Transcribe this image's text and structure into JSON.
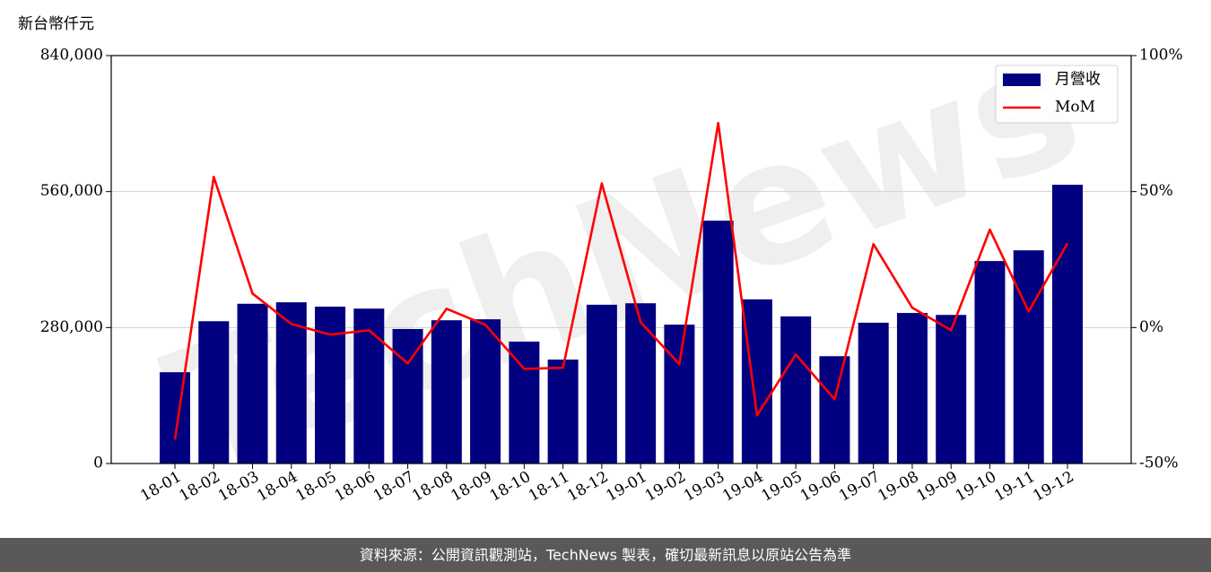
{
  "chart_data": {
    "type": "bar-line",
    "y_label": "新台幣仟元",
    "watermark": "TechNews",
    "footer": "資料來源：公開資訊觀測站，TechNews 製表，確切最新訊息以原站公告為準",
    "categories": [
      "18-01",
      "18-02",
      "18-03",
      "18-04",
      "18-05",
      "18-06",
      "18-07",
      "18-08",
      "18-09",
      "18-10",
      "18-11",
      "18-12",
      "19-01",
      "19-02",
      "19-03",
      "19-04",
      "19-05",
      "19-06",
      "19-07",
      "19-08",
      "19-09",
      "19-10",
      "19-11",
      "19-12"
    ],
    "series": [
      {
        "name": "月營收",
        "type": "bar",
        "color": "#000080",
        "values": [
          188000,
          293000,
          329000,
          332000,
          323000,
          319000,
          277000,
          295000,
          297000,
          251000,
          214000,
          327000,
          330000,
          286000,
          500000,
          338000,
          303000,
          221000,
          290000,
          310000,
          306000,
          417000,
          439000,
          574000
        ]
      },
      {
        "name": "MoM",
        "type": "line",
        "axis": "y2",
        "color": "#ff0000",
        "values": [
          -41.2,
          55.4,
          12.5,
          1.3,
          -2.6,
          -1.0,
          -13.2,
          6.9,
          1.0,
          -15.2,
          -14.8,
          53.0,
          2.0,
          -13.5,
          75.2,
          -32.3,
          -9.9,
          -26.4,
          30.7,
          7.3,
          -1.0,
          36.0,
          5.9,
          31.0
        ]
      }
    ],
    "ylim": [
      0,
      840000
    ],
    "yticks": [
      0,
      {
        "value": 280000,
        "label": "280,000"
      },
      {
        "value": 560000,
        "label": "560,000"
      },
      {
        "value": 840000,
        "label": "840,000"
      }
    ],
    "y2lim": [
      -50,
      100
    ],
    "y2ticks": [
      {
        "value": -50,
        "label": "-50%"
      },
      {
        "value": 0,
        "label": "0%"
      },
      {
        "value": 50,
        "label": "50%"
      },
      {
        "value": 100,
        "label": "100%"
      }
    ],
    "grid": true,
    "legend": "upper right"
  }
}
